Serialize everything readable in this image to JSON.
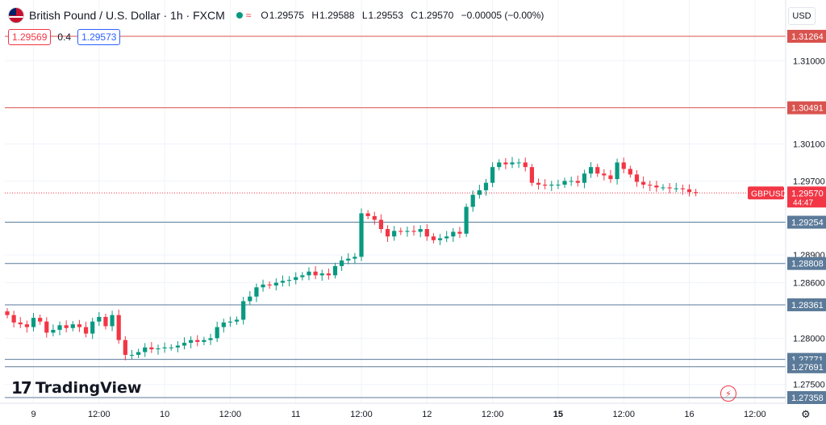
{
  "header": {
    "symbol_title": "British Pound / U.S. Dollar · 1h · FXCM",
    "ohlc": [
      {
        "k": "O",
        "v": "1.29575"
      },
      {
        "k": "H",
        "v": "1.29588"
      },
      {
        "k": "L",
        "v": "1.29553"
      },
      {
        "k": "C",
        "v": "1.29570"
      }
    ],
    "change": "−0.00005 (−0.00%)",
    "sell_price": "1.29569",
    "spread": "0.4",
    "buy_price": "1.29573"
  },
  "currency_label": "USD",
  "logo_text": "TradingView",
  "colors": {
    "up": "#089981",
    "down": "#f23645",
    "support_line": "#5b7a99",
    "resistance_line": "#d9534f",
    "grid": "#f0f3fa"
  },
  "chart_data": {
    "type": "candlestick",
    "symbol": "GBPUSD",
    "interval": "1h",
    "ylim": [
      1.2728,
      1.3145
    ],
    "y_ticks": [
      "1.31000",
      "1.30100",
      "1.29700",
      "1.28900",
      "1.28600",
      "1.28000",
      "1.27500"
    ],
    "x_labels": [
      {
        "label": "9",
        "bold": false,
        "i": 4
      },
      {
        "label": "12:00",
        "bold": false,
        "i": 14
      },
      {
        "label": "10",
        "bold": false,
        "i": 24
      },
      {
        "label": "12:00",
        "bold": false,
        "i": 34
      },
      {
        "label": "11",
        "bold": false,
        "i": 44
      },
      {
        "label": "12:00",
        "bold": false,
        "i": 54
      },
      {
        "label": "12",
        "bold": false,
        "i": 64
      },
      {
        "label": "12:00",
        "bold": false,
        "i": 74
      },
      {
        "label": "15",
        "bold": true,
        "i": 84
      },
      {
        "label": "12:00",
        "bold": false,
        "i": 94
      },
      {
        "label": "16",
        "bold": false,
        "i": 104
      },
      {
        "label": "12:00",
        "bold": false,
        "i": 114
      }
    ],
    "levels": [
      {
        "label": "1.31264",
        "value": 1.31264,
        "kind": "resistance"
      },
      {
        "label": "1.30491",
        "value": 1.30491,
        "kind": "resistance"
      },
      {
        "label": "1.29254",
        "value": 1.29254,
        "kind": "support"
      },
      {
        "label": "1.28808",
        "value": 1.28808,
        "kind": "support"
      },
      {
        "label": "1.28361",
        "value": 1.28361,
        "kind": "support"
      },
      {
        "label": "1.27771",
        "value": 1.27771,
        "kind": "support"
      },
      {
        "label": "1.27691",
        "value": 1.27691,
        "kind": "support"
      },
      {
        "label": "1.27358",
        "value": 1.27358,
        "kind": "support"
      }
    ],
    "current": {
      "symbol": "GBPUSD",
      "price_label": "1.29570",
      "price": 1.2957,
      "countdown": "44:47"
    },
    "closes": [
      1.2825,
      1.2817,
      1.2815,
      1.2812,
      1.2822,
      1.2818,
      1.2806,
      1.2809,
      1.2814,
      1.2811,
      1.2815,
      1.2812,
      1.2805,
      1.2818,
      1.2823,
      1.2813,
      1.2825,
      1.2798,
      1.2782,
      1.2782,
      1.2785,
      1.279,
      1.2788,
      1.2789,
      1.279,
      1.279,
      1.2792,
      1.2795,
      1.2798,
      1.2796,
      1.2798,
      1.28,
      1.2812,
      1.2817,
      1.2818,
      1.282,
      1.284,
      1.2845,
      1.2855,
      1.2858,
      1.2857,
      1.286,
      1.2862,
      1.2863,
      1.2866,
      1.2868,
      1.2872,
      1.2868,
      1.287,
      1.2868,
      1.2878,
      1.2884,
      1.2886,
      1.2888,
      1.2935,
      1.2932,
      1.2928,
      1.2918,
      1.291,
      1.2916,
      1.2915,
      1.2916,
      1.2915,
      1.2918,
      1.291,
      1.2906,
      1.2908,
      1.291,
      1.2915,
      1.2913,
      1.2942,
      1.2955,
      1.296,
      1.2968,
      1.2985,
      1.299,
      1.2988,
      1.299,
      1.299,
      1.2985,
      1.2968,
      1.2966,
      1.2965,
      1.2966,
      1.2966,
      1.297,
      1.297,
      1.2968,
      1.2978,
      1.2985,
      1.2978,
      1.2976,
      1.2972,
      1.299,
      1.2983,
      1.2977,
      1.2969,
      1.2966,
      1.2965,
      1.2963,
      1.2963,
      1.2962,
      1.2962,
      1.2961,
      1.2958,
      1.2957
    ]
  }
}
